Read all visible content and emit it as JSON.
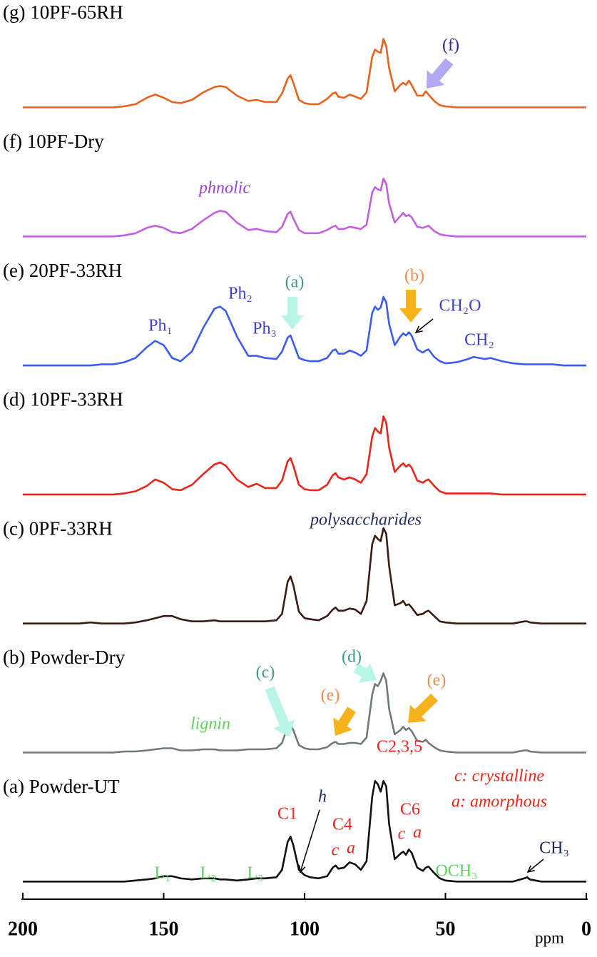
{
  "chart_data": {
    "type": "line",
    "xlabel": "ppm",
    "xlim": [
      200,
      0
    ],
    "xticks": [
      200,
      150,
      100,
      50,
      0
    ],
    "ylim": [
      0,
      100
    ],
    "x": [
      200,
      196,
      192,
      188,
      184,
      180,
      176,
      172,
      168,
      164,
      160,
      156,
      153,
      150,
      147,
      144,
      140,
      136,
      132,
      130,
      128,
      124,
      120,
      117,
      114,
      110,
      108,
      106,
      105,
      104,
      102,
      100,
      98,
      95,
      92,
      90,
      89,
      88,
      86,
      84,
      82,
      80,
      78,
      76,
      75,
      74,
      73,
      72,
      71,
      70,
      68,
      66,
      65,
      64,
      63,
      62,
      60,
      58,
      57,
      56,
      54,
      52,
      50,
      46,
      42,
      40,
      38,
      36,
      34,
      30,
      26,
      22,
      21,
      20,
      16,
      12,
      8,
      4,
      0
    ],
    "series": [
      {
        "name": "(g) 10PF-65RH",
        "color": "#e8621e",
        "values": [
          1,
          1,
          1,
          1,
          1,
          1,
          1,
          1,
          1,
          2,
          4,
          10,
          13,
          10,
          6,
          5,
          8,
          15,
          20,
          21,
          20,
          12,
          7,
          8,
          6,
          6,
          14,
          28,
          31,
          24,
          8,
          5,
          4,
          4,
          9,
          14,
          15,
          11,
          10,
          13,
          11,
          9,
          15,
          48,
          55,
          53,
          52,
          65,
          58,
          38,
          16,
          22,
          24,
          22,
          26,
          22,
          12,
          12,
          16,
          13,
          7,
          3,
          2,
          1,
          1,
          1,
          1,
          1,
          1,
          1,
          1,
          1,
          1,
          1,
          1,
          1,
          1,
          1,
          1
        ]
      },
      {
        "name": "(f) 10PF-Dry",
        "color": "#c45fe0",
        "values": [
          1,
          1,
          1,
          1,
          1,
          1,
          1,
          1,
          1,
          2,
          4,
          9,
          11,
          9,
          5,
          4,
          8,
          16,
          23,
          25,
          24,
          14,
          7,
          8,
          6,
          5,
          10,
          22,
          24,
          18,
          7,
          4,
          4,
          4,
          7,
          10,
          11,
          8,
          8,
          10,
          9,
          8,
          12,
          42,
          47,
          45,
          44,
          55,
          50,
          32,
          14,
          20,
          23,
          20,
          21,
          19,
          10,
          9,
          10,
          11,
          6,
          3,
          2,
          1,
          1,
          1,
          1,
          1,
          1,
          1,
          1,
          1,
          1,
          1,
          1,
          1,
          1,
          1,
          1
        ]
      },
      {
        "name": "(e) 20PF-33RH",
        "color": "#3b5cf0",
        "values": [
          1,
          1,
          1,
          1,
          1,
          1,
          1,
          2,
          2,
          4,
          8,
          18,
          24,
          20,
          8,
          5,
          14,
          36,
          54,
          56,
          52,
          28,
          10,
          10,
          8,
          7,
          14,
          27,
          29,
          22,
          8,
          6,
          5,
          5,
          8,
          15,
          16,
          12,
          12,
          15,
          13,
          10,
          15,
          50,
          56,
          53,
          55,
          65,
          60,
          40,
          20,
          28,
          31,
          29,
          32,
          29,
          16,
          13,
          15,
          16,
          9,
          5,
          3,
          4,
          7,
          9,
          8,
          7,
          8,
          5,
          3,
          2,
          2,
          2,
          2,
          2,
          1,
          1,
          1
        ]
      },
      {
        "name": "(d) 10PF-33RH",
        "color": "#e8261c",
        "values": [
          1,
          1,
          1,
          1,
          1,
          1,
          1,
          1,
          1,
          2,
          4,
          9,
          15,
          12,
          6,
          5,
          10,
          20,
          29,
          31,
          28,
          15,
          8,
          11,
          7,
          7,
          14,
          32,
          35,
          28,
          10,
          6,
          5,
          5,
          10,
          19,
          21,
          17,
          15,
          17,
          15,
          12,
          20,
          55,
          63,
          60,
          58,
          74,
          68,
          45,
          22,
          28,
          30,
          27,
          29,
          26,
          14,
          12,
          14,
          15,
          9,
          4,
          2,
          2,
          2,
          2,
          2,
          2,
          2,
          1,
          1,
          1,
          1,
          1,
          1,
          1,
          1,
          1,
          1
        ]
      },
      {
        "name": "(c) 0PF-33RH",
        "color": "#3a1b16",
        "values": [
          1,
          1,
          1,
          1,
          1,
          1,
          2,
          1,
          1,
          1,
          2,
          4,
          6,
          8,
          8,
          5,
          3,
          3,
          4,
          3,
          3,
          3,
          3,
          3,
          3,
          4,
          10,
          40,
          45,
          37,
          12,
          6,
          5,
          4,
          8,
          14,
          16,
          13,
          13,
          15,
          14,
          10,
          22,
          75,
          83,
          80,
          78,
          90,
          85,
          55,
          18,
          20,
          22,
          18,
          19,
          16,
          9,
          10,
          12,
          13,
          8,
          3,
          2,
          1,
          1,
          1,
          1,
          1,
          1,
          1,
          1,
          3,
          3,
          2,
          1,
          1,
          1,
          1,
          1
        ]
      },
      {
        "name": "(b) Powder-Dry",
        "color": "#6e7a78",
        "values": [
          1,
          1,
          1,
          1,
          1,
          1,
          1,
          1,
          1,
          2,
          2,
          3,
          4,
          5,
          5,
          3,
          3,
          4,
          4,
          3,
          3,
          3,
          4,
          4,
          4,
          5,
          10,
          25,
          27,
          22,
          8,
          5,
          4,
          4,
          6,
          10,
          11,
          9,
          9,
          10,
          10,
          9,
          15,
          55,
          65,
          63,
          68,
          75,
          68,
          42,
          18,
          22,
          25,
          22,
          24,
          21,
          12,
          11,
          13,
          10,
          6,
          3,
          2,
          1,
          1,
          1,
          1,
          1,
          1,
          1,
          1,
          3,
          3,
          2,
          1,
          1,
          1,
          1,
          1
        ]
      },
      {
        "name": "(a) Powder-UT",
        "color": "#111111",
        "values": [
          1,
          1,
          1,
          1,
          1,
          1,
          1,
          1,
          1,
          1,
          2,
          3,
          4,
          6,
          6,
          4,
          3,
          4,
          4,
          3,
          3,
          2,
          3,
          4,
          4,
          5,
          12,
          38,
          43,
          35,
          12,
          7,
          5,
          4,
          6,
          14,
          16,
          13,
          14,
          19,
          17,
          12,
          20,
          80,
          95,
          92,
          85,
          95,
          90,
          55,
          22,
          27,
          29,
          26,
          31,
          28,
          14,
          11,
          14,
          15,
          9,
          4,
          2,
          1,
          1,
          1,
          1,
          1,
          1,
          1,
          1,
          4,
          5,
          3,
          1,
          1,
          1,
          1,
          1
        ]
      }
    ],
    "annotations": [
      {
        "text": "(f)",
        "color": "#2b2b8c"
      },
      {
        "text": "phnolic",
        "color": "#9b3fd8"
      },
      {
        "text": "Ph₁",
        "color": "#4040d0"
      },
      {
        "text": "Ph₂",
        "color": "#4040d0"
      },
      {
        "text": "Ph₃",
        "color": "#4040d0"
      },
      {
        "text": "(a)",
        "color": "#3a9a8a"
      },
      {
        "text": "(b)",
        "color": "#f08a50"
      },
      {
        "text": "CH₂O",
        "color": "#4040d0"
      },
      {
        "text": "CH₂",
        "color": "#4040d0"
      },
      {
        "text": "polysaccharides",
        "color": "#1e2a5a"
      },
      {
        "text": "(c)",
        "color": "#3a9a8a"
      },
      {
        "text": "(d)",
        "color": "#3a9a8a"
      },
      {
        "text": "(e)",
        "color": "#f08a50"
      },
      {
        "text": "(e)",
        "color": "#f08a50"
      },
      {
        "text": "lignin",
        "color": "#5ed45e"
      },
      {
        "text": "C2,3,5",
        "color": "#e8261c"
      },
      {
        "text": "c: crystalline",
        "color": "#e8261c"
      },
      {
        "text": "a: amorphous",
        "color": "#e8261c"
      },
      {
        "text": "C1",
        "color": "#e8261c"
      },
      {
        "text": "h",
        "color": "#1e2a5a"
      },
      {
        "text": "C4",
        "color": "#e8261c"
      },
      {
        "text": "c",
        "color": "#e8261c"
      },
      {
        "text": "a",
        "color": "#e8261c"
      },
      {
        "text": "C6",
        "color": "#e8261c"
      },
      {
        "text": "c",
        "color": "#e8261c"
      },
      {
        "text": "a",
        "color": "#e8261c"
      },
      {
        "text": "L₁",
        "color": "#5ed45e"
      },
      {
        "text": "L₂",
        "color": "#5ed45e"
      },
      {
        "text": "L₃",
        "color": "#5ed45e"
      },
      {
        "text": "OCH₃",
        "color": "#5ed45e"
      },
      {
        "text": "CH₃",
        "color": "#1e2a5a"
      }
    ]
  }
}
